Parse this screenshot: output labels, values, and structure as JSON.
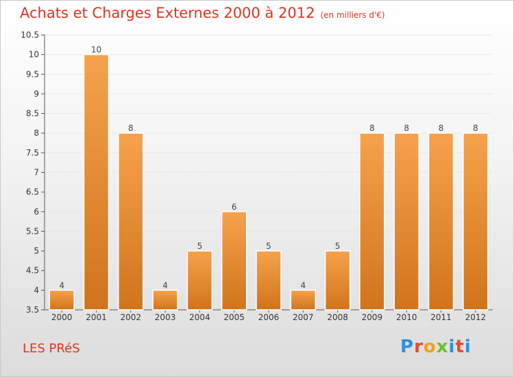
{
  "header": {
    "title": "Achats et Charges Externes 2000 à 2012",
    "unit": "(en milliers d'€)"
  },
  "footer": {
    "city": "LES PRéS",
    "logo_text": "Proxiti",
    "logo_letter_colors": [
      "#2f8fd8",
      "#e84a2f",
      "#f2a21b",
      "#6cbd2c",
      "#2f8fd8",
      "#e84a2f",
      "#2f8fd8"
    ]
  },
  "colors": {
    "bar_light": "#f6a24c",
    "bar_dark": "#d0741c",
    "title": "#e0331f",
    "axis": "#555555",
    "grid": "#e8e8e8"
  },
  "chart_data": {
    "type": "bar",
    "title": "Achats et Charges Externes 2000 à 2012",
    "subtitle": "(en milliers d'€)",
    "categories": [
      "2000",
      "2001",
      "2002",
      "2003",
      "2004",
      "2005",
      "2006",
      "2007",
      "2008",
      "2009",
      "2010",
      "2011",
      "2012"
    ],
    "values": [
      4,
      10,
      8,
      4,
      5,
      6,
      5,
      4,
      5,
      8,
      8,
      8,
      8
    ],
    "ylim": [
      3.5,
      10.5
    ],
    "yticks": [
      3.5,
      4,
      4.5,
      5,
      5.5,
      6,
      6.5,
      7,
      7.5,
      8,
      8.5,
      9,
      9.5,
      10,
      10.5
    ],
    "ytick_labels": [
      "3.5",
      "4",
      "4.5",
      "5",
      "5.5",
      "6",
      "6.5",
      "7",
      "7.5",
      "8",
      "8.5",
      "9",
      "9.5",
      "10",
      "10.5"
    ],
    "grid": true,
    "data_labels": true
  }
}
